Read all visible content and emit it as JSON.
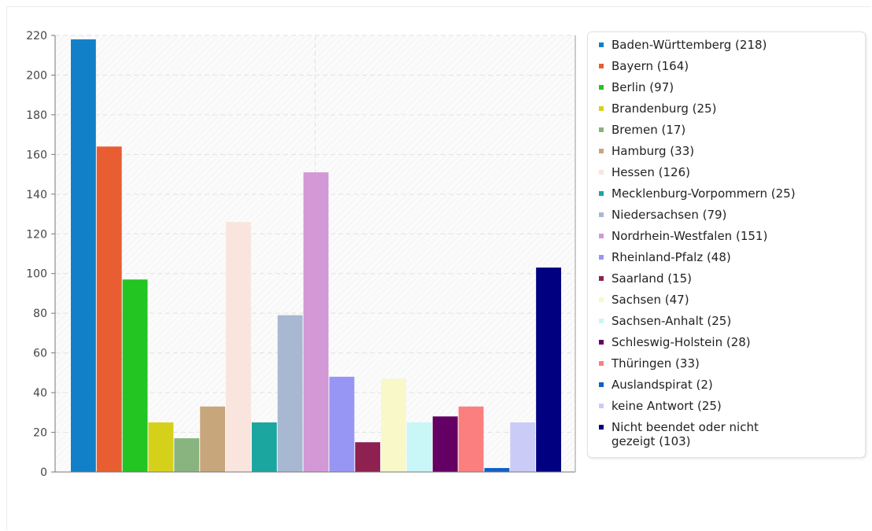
{
  "chart_data": {
    "type": "bar",
    "ylim": [
      0,
      220
    ],
    "yticks": [
      0,
      20,
      40,
      60,
      80,
      100,
      120,
      140,
      160,
      180,
      200,
      220
    ],
    "grid": true,
    "legend_placement": "right",
    "series": [
      {
        "name": "Baden-Württemberg (218)",
        "value": 218,
        "color": "#1180c9"
      },
      {
        "name": "Bayern (164)",
        "value": 164,
        "color": "#e85d31"
      },
      {
        "name": "Berlin (97)",
        "value": 97,
        "color": "#22c522"
      },
      {
        "name": "Brandenburg (25)",
        "value": 25,
        "color": "#d5d11b"
      },
      {
        "name": "Bremen (17)",
        "value": 17,
        "color": "#8ab47f"
      },
      {
        "name": "Hamburg (33)",
        "value": 33,
        "color": "#c7a67c"
      },
      {
        "name": "Hessen (126)",
        "value": 126,
        "color": "#f9e5de"
      },
      {
        "name": "Mecklenburg-Vorpommern (25)",
        "value": 25,
        "color": "#1ba6a0"
      },
      {
        "name": "Niedersachsen (79)",
        "value": 79,
        "color": "#a8b8d2"
      },
      {
        "name": "Nordrhein-Westfalen (151)",
        "value": 151,
        "color": "#d398d6"
      },
      {
        "name": "Rheinland-Pfalz (48)",
        "value": 48,
        "color": "#9896f5"
      },
      {
        "name": "Saarland (15)",
        "value": 15,
        "color": "#8f2151"
      },
      {
        "name": "Sachsen (47)",
        "value": 47,
        "color": "#f8f8c8"
      },
      {
        "name": "Sachsen-Anhalt (25)",
        "value": 25,
        "color": "#c9f6f6"
      },
      {
        "name": "Schleswig-Holstein (28)",
        "value": 28,
        "color": "#640064"
      },
      {
        "name": "Thüringen (33)",
        "value": 33,
        "color": "#fb7f7f"
      },
      {
        "name": "Auslandspirat (2)",
        "value": 2,
        "color": "#0d60c8"
      },
      {
        "name": "keine Antwort (25)",
        "value": 25,
        "color": "#cbcbf7"
      },
      {
        "name": "Nicht beendet oder nicht gezeigt (103)",
        "value": 103,
        "color": "#000080"
      }
    ]
  }
}
